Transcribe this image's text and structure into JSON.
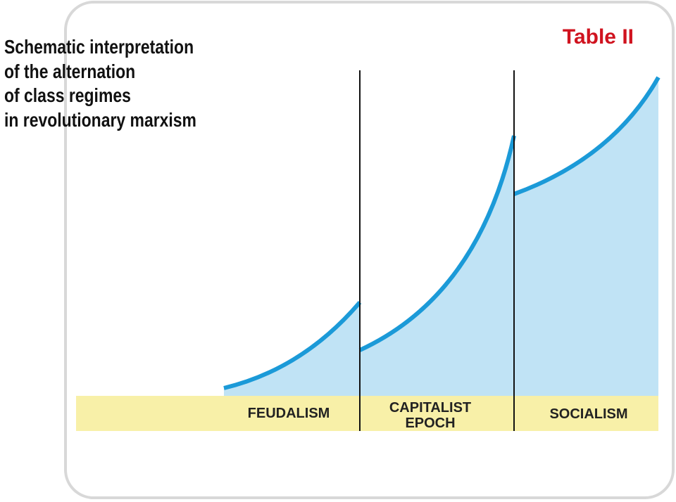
{
  "title_lines": [
    "Schematic interpretation",
    "of the alternation",
    "of class regimes",
    "in revolutionary marxism"
  ],
  "table_label": "Table II",
  "periods": [
    {
      "label_lines": [
        "FEUDALISM"
      ]
    },
    {
      "label_lines": [
        "CAPITALIST",
        "EPOCH"
      ]
    },
    {
      "label_lines": [
        "SOCIALISM"
      ]
    }
  ]
}
